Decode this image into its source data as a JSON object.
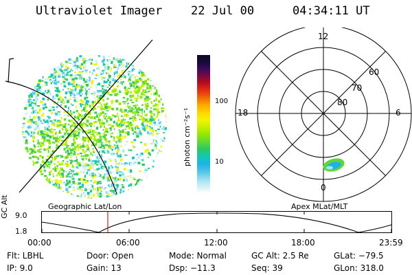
{
  "header": {
    "instrument": "Ultraviolet Imager",
    "date": "22 Jul 00",
    "time": "04:34:11 UT"
  },
  "panels": {
    "geographic_label": "Geographic Lat/Lon",
    "apex_label": "Apex MLat/MLT"
  },
  "colorbar": {
    "unit": "photon cm⁻²s⁻¹",
    "ticks": [
      "100",
      "10"
    ]
  },
  "apex_polar": {
    "mlt_labels": {
      "top": "12",
      "left": "18",
      "right": "6",
      "bottom": "0"
    },
    "mlat_labels": [
      "60",
      "70",
      "80"
    ]
  },
  "gc_alt_plot": {
    "axis_label": "GC Alt",
    "y_top": "9.0",
    "y_bottom": "1.8",
    "time_ticks": [
      "00:00",
      "06:00",
      "12:00",
      "18:00",
      "23:59"
    ],
    "current_time_marker": "04:34",
    "marker_color": "#c81e1e"
  },
  "info": {
    "flt": "Flt: LBHL",
    "ip": "IP:  9.0",
    "door": "Door: Open",
    "gain": "Gain: 13",
    "mode": "Mode: Normal",
    "dsp": "Dsp:  −11.3",
    "gc_alt": "GC Alt: 2.5 Re",
    "seq": "Seq: 39",
    "glat": "GLat: −79.5",
    "glon": "GLon: 318.0"
  }
}
